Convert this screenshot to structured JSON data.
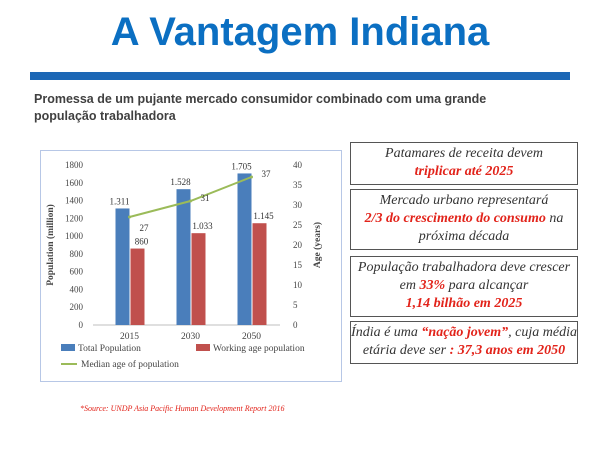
{
  "page": {
    "title": "A Vantagem Indiana",
    "subtitle": "Promessa de um pujante mercado consumidor combinado com uma grande população trabalhadora",
    "source": "*Source: UNDP Asia Pacific Human Development Report 2016"
  },
  "boxes": [
    {
      "pre": "Patamares de receita devem ",
      "highlight": "triplicar até 2025",
      "post": ""
    },
    {
      "pre": "Mercado urbano representará ",
      "highlight": "2/3  do crescimento do consumo",
      "post": " na próxima década"
    },
    {
      "pre": "População trabalhadora deve crescer em ",
      "highlight": "33%",
      "mid": " para alcançar ",
      "highlight2": "1,14 bilhão em 2025",
      "post": ""
    },
    {
      "pre": "Índia é uma ",
      "highlight": "“nação jovem”",
      "mid": ", cuja média etária deve ser ",
      "highlight2": ": 37,3 anos em 2050",
      "post": ""
    }
  ],
  "chart_data": {
    "type": "bar",
    "categories": [
      "2015",
      "2030",
      "2050"
    ],
    "series": [
      {
        "name": "Total Population",
        "type": "bar",
        "axis": "left",
        "color": "#4a7ebb",
        "values": [
          1311,
          1528,
          1705
        ],
        "labels": [
          "1.311",
          "1.528",
          "1.705"
        ]
      },
      {
        "name": "Working age population",
        "type": "bar",
        "axis": "left",
        "color": "#c0504d",
        "values": [
          860,
          1033,
          1145
        ],
        "labels": [
          "860",
          "1.033",
          "1.145"
        ]
      },
      {
        "name": "Median age of population",
        "type": "line",
        "axis": "right",
        "color": "#9bbb59",
        "values": [
          27,
          31,
          37
        ],
        "labels": [
          "27",
          "31",
          "37"
        ]
      }
    ],
    "ylabel": "Population (million)",
    "y2label": "Age (years)",
    "ylim": [
      0,
      1800
    ],
    "y2lim": [
      0,
      40
    ],
    "yticks": [
      "0",
      "200",
      "400",
      "600",
      "800",
      "1000",
      "1200",
      "1400",
      "1600",
      "1800"
    ],
    "y2ticks": [
      "0",
      "5",
      "10",
      "15",
      "20",
      "25",
      "30",
      "35",
      "40"
    ],
    "legend": "bottom",
    "grid": false
  }
}
